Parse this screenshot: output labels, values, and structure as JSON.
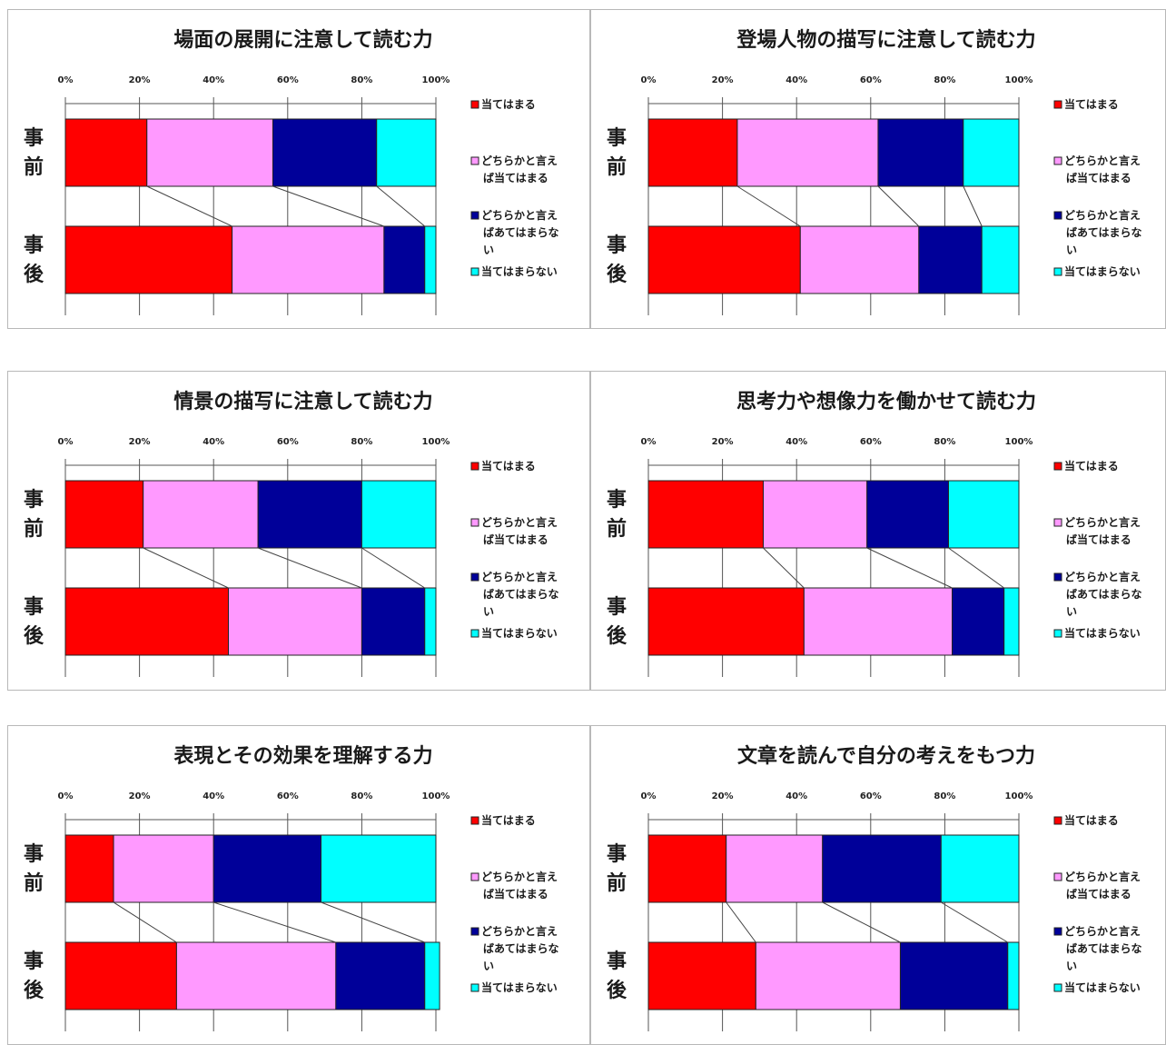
{
  "chart_data": [
    {
      "type": "bar",
      "orientation": "horizontal",
      "stacked": "percent",
      "title": "場面の展開に注意して読む力",
      "categories": [
        "事前",
        "事後"
      ],
      "xticks": [
        "0%",
        "20%",
        "40%",
        "60%",
        "80%",
        "100%"
      ],
      "xlim": [
        0,
        100
      ],
      "legend_position": "right",
      "series": [
        {
          "name": "当てはまる",
          "color": "#ff0000",
          "values": [
            22,
            45
          ]
        },
        {
          "name": "どちらかと言えば当てはまる",
          "color": "#ff99ff",
          "values": [
            34,
            41
          ]
        },
        {
          "name": "どちらかと言えばあてはまらない",
          "color": "#000099",
          "values": [
            28,
            11
          ]
        },
        {
          "name": "当てはまらない",
          "color": "#00ffff",
          "values": [
            16,
            3
          ]
        }
      ]
    },
    {
      "type": "bar",
      "orientation": "horizontal",
      "stacked": "percent",
      "title": "登場人物の描写に注意して読む力",
      "categories": [
        "事前",
        "事後"
      ],
      "xticks": [
        "0%",
        "20%",
        "40%",
        "60%",
        "80%",
        "100%"
      ],
      "xlim": [
        0,
        100
      ],
      "legend_position": "right",
      "series": [
        {
          "name": "当てはまる",
          "color": "#ff0000",
          "values": [
            24,
            41
          ]
        },
        {
          "name": "どちらかと言えば当てはまる",
          "color": "#ff99ff",
          "values": [
            38,
            32
          ]
        },
        {
          "name": "どちらかと言えばあてはまらない",
          "color": "#000099",
          "values": [
            23,
            17
          ]
        },
        {
          "name": "当てはまらない",
          "color": "#00ffff",
          "values": [
            15,
            10
          ]
        }
      ]
    },
    {
      "type": "bar",
      "orientation": "horizontal",
      "stacked": "percent",
      "title": "情景の描写に注意して読む力",
      "categories": [
        "事前",
        "事後"
      ],
      "xticks": [
        "0%",
        "20%",
        "40%",
        "60%",
        "80%",
        "100%"
      ],
      "xlim": [
        0,
        100
      ],
      "legend_position": "right",
      "series": [
        {
          "name": "当てはまる",
          "color": "#ff0000",
          "values": [
            21,
            44
          ]
        },
        {
          "name": "どちらかと言えば当てはまる",
          "color": "#ff99ff",
          "values": [
            31,
            36
          ]
        },
        {
          "name": "どちらかと言えばあてはまらない",
          "color": "#000099",
          "values": [
            28,
            17
          ]
        },
        {
          "name": "当てはまらない",
          "color": "#00ffff",
          "values": [
            20,
            3
          ]
        }
      ]
    },
    {
      "type": "bar",
      "orientation": "horizontal",
      "stacked": "percent",
      "title": "思考力や想像力を働かせて読む力",
      "categories": [
        "事前",
        "事後"
      ],
      "xticks": [
        "0%",
        "20%",
        "40%",
        "60%",
        "80%",
        "100%"
      ],
      "xlim": [
        0,
        100
      ],
      "legend_position": "right",
      "series": [
        {
          "name": "当てはまる",
          "color": "#ff0000",
          "values": [
            31,
            42
          ]
        },
        {
          "name": "どちらかと言えば当てはまる",
          "color": "#ff99ff",
          "values": [
            28,
            40
          ]
        },
        {
          "name": "どちらかと言えばあてはまらない",
          "color": "#000099",
          "values": [
            22,
            14
          ]
        },
        {
          "name": "当てはまらない",
          "color": "#00ffff",
          "values": [
            19,
            4
          ]
        }
      ]
    },
    {
      "type": "bar",
      "orientation": "horizontal",
      "stacked": "percent",
      "title": "表現とその効果を理解する力",
      "categories": [
        "事前",
        "事後"
      ],
      "xticks": [
        "0%",
        "20%",
        "40%",
        "60%",
        "80%",
        "100%"
      ],
      "xlim": [
        0,
        100
      ],
      "legend_position": "right",
      "series": [
        {
          "name": "当てはまる",
          "color": "#ff0000",
          "values": [
            13,
            30
          ]
        },
        {
          "name": "どちらかと言えば当てはまる",
          "color": "#ff99ff",
          "values": [
            27,
            43
          ]
        },
        {
          "name": "どちらかと言えばあてはまらない",
          "color": "#000099",
          "values": [
            29,
            24
          ]
        },
        {
          "name": "当てはまらない",
          "color": "#00ffff",
          "values": [
            31,
            4
          ]
        }
      ]
    },
    {
      "type": "bar",
      "orientation": "horizontal",
      "stacked": "percent",
      "title": "文章を読んで自分の考えをもつ力",
      "categories": [
        "事前",
        "事後"
      ],
      "xticks": [
        "0%",
        "20%",
        "40%",
        "60%",
        "80%",
        "100%"
      ],
      "xlim": [
        0,
        100
      ],
      "legend_position": "right",
      "series": [
        {
          "name": "当てはまる",
          "color": "#ff0000",
          "values": [
            21,
            29
          ]
        },
        {
          "name": "どちらかと言えば当てはまる",
          "color": "#ff99ff",
          "values": [
            26,
            39
          ]
        },
        {
          "name": "どちらかと言えばあてはまらない",
          "color": "#000099",
          "values": [
            32,
            29
          ]
        },
        {
          "name": "当てはまらない",
          "color": "#00ffff",
          "values": [
            21,
            3
          ]
        }
      ]
    }
  ]
}
